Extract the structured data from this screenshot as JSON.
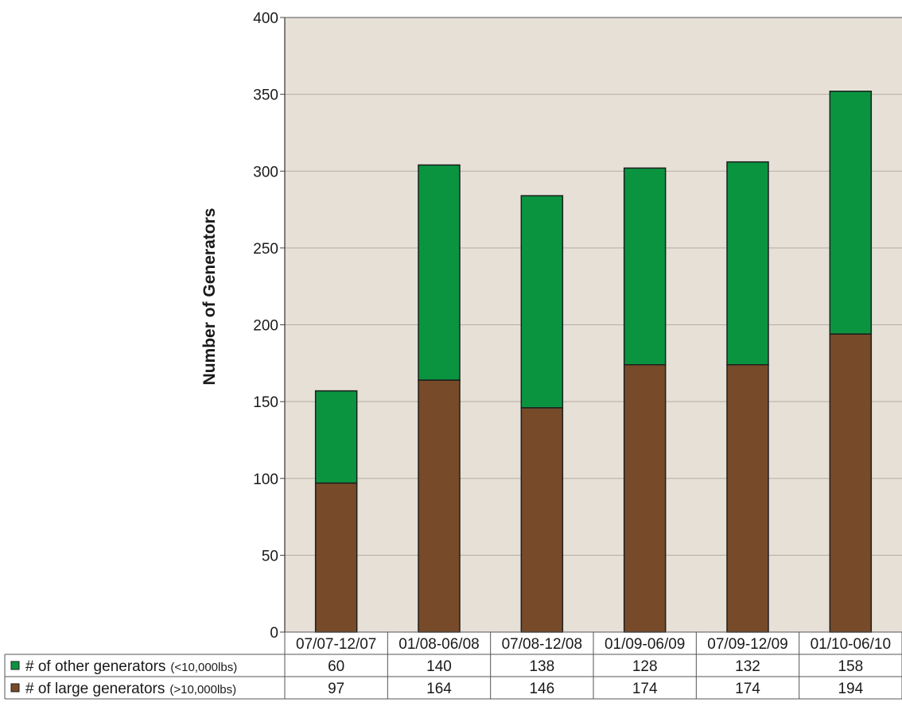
{
  "chart_data": {
    "type": "bar",
    "stacked": true,
    "title": "",
    "xlabel": "",
    "ylabel": "Number of Generators",
    "ylim": [
      0,
      400
    ],
    "yticks": [
      0,
      50,
      100,
      150,
      200,
      250,
      300,
      350,
      400
    ],
    "grid": true,
    "categories": [
      "07/07-12/07",
      "01/08-06/08",
      "07/08-12/08",
      "01/09-06/09",
      "07/09-12/09",
      "01/10-06/10"
    ],
    "series": [
      {
        "name": "# of large generators",
        "unit_note": "(>10,000lbs)",
        "color": "#774b29",
        "values": [
          97,
          164,
          146,
          174,
          174,
          194
        ]
      },
      {
        "name": "# of other generators",
        "unit_note": "(<10,000lbs)",
        "color": "#0b9440",
        "values": [
          60,
          140,
          138,
          128,
          132,
          158
        ]
      }
    ],
    "plot_background": "#e6e0d6",
    "legend": "data-table-bottom"
  }
}
